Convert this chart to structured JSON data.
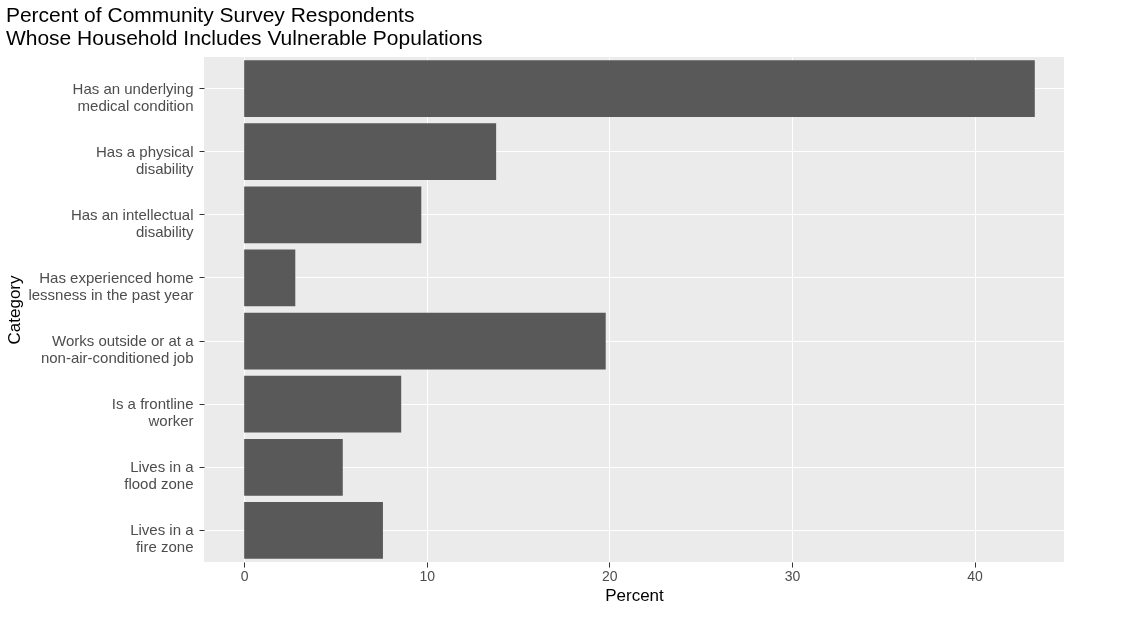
{
  "chart_data": {
    "type": "bar",
    "orientation": "horizontal",
    "title": "Percent of Community Survey Respondents\nWhose Household Includes Vulnerable Populations",
    "xlabel": "Percent",
    "ylabel": "Category",
    "categories": [
      "Has an underlying\nmedical condition",
      "Has a physical\ndisability",
      "Has an intellectual\ndisability",
      "Has experienced home\nlessness in the past year",
      "Works outside or at a\nnon-air-conditioned job",
      "Is a frontline\nworker",
      "Lives in a\nflood zone",
      "Lives in a\nfire zone"
    ],
    "values": [
      43.3,
      13.8,
      9.7,
      2.8,
      19.8,
      8.6,
      5.4,
      7.6
    ],
    "color": "#595959",
    "xlim": [
      -2.2,
      44.9
    ],
    "xticks": [
      0,
      10,
      20,
      30,
      40
    ],
    "grid": true
  }
}
